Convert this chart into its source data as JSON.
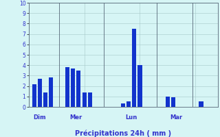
{
  "bars": [
    {
      "x": 1,
      "height": 2.2
    },
    {
      "x": 2,
      "height": 2.7
    },
    {
      "x": 3,
      "height": 1.4
    },
    {
      "x": 4,
      "height": 2.8
    },
    {
      "x": 7,
      "height": 3.8
    },
    {
      "x": 8,
      "height": 3.7
    },
    {
      "x": 9,
      "height": 3.5
    },
    {
      "x": 10,
      "height": 1.4
    },
    {
      "x": 11,
      "height": 1.4
    },
    {
      "x": 17,
      "height": 0.3
    },
    {
      "x": 18,
      "height": 0.5
    },
    {
      "x": 19,
      "height": 7.5
    },
    {
      "x": 20,
      "height": 4.0
    },
    {
      "x": 25,
      "height": 1.0
    },
    {
      "x": 26,
      "height": 0.9
    },
    {
      "x": 31,
      "height": 0.55
    }
  ],
  "bar_color": "#1133cc",
  "background_color": "#d6f5f5",
  "grid_color": "#aacccc",
  "xlabel": "Précipitations 24h ( mm )",
  "xlabel_color": "#3333cc",
  "tick_label_color": "#3333cc",
  "ylim": [
    0,
    10
  ],
  "yticks": [
    0,
    1,
    2,
    3,
    4,
    5,
    6,
    7,
    8,
    9,
    10
  ],
  "day_labels": [
    {
      "x": 2.0,
      "label": "Dim"
    },
    {
      "x": 8.5,
      "label": "Mer"
    },
    {
      "x": 18.5,
      "label": "Lun"
    },
    {
      "x": 26.5,
      "label": "Mar"
    }
  ],
  "vlines": [
    5.5,
    13.5,
    23.0,
    29.5
  ],
  "xlim": [
    0.0,
    34.0
  ],
  "bar_width": 0.75
}
